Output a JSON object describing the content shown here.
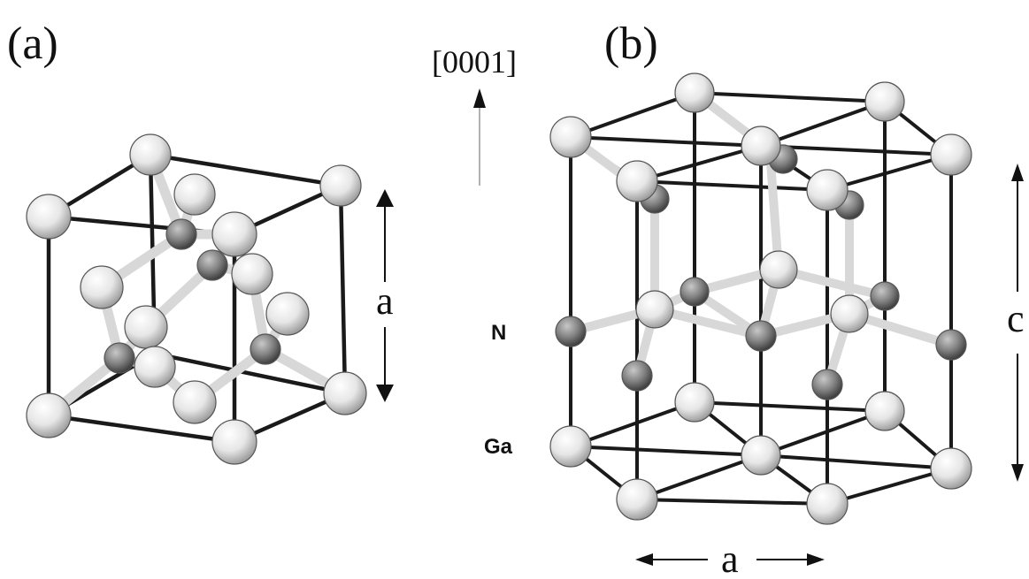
{
  "panel_a": {
    "label": "(a)",
    "dimension_label": "a"
  },
  "panel_b": {
    "label": "(b)",
    "direction_label": "[0001]",
    "atom_label_top": "N",
    "atom_label_bottom": "Ga",
    "height_label": "c",
    "width_label": "a"
  },
  "colors": {
    "frame_line": "#1a1a1a",
    "bond": "#d8d8d8",
    "atom_light": "#f2f2f2",
    "atom_dark": "#7a7a7a"
  }
}
